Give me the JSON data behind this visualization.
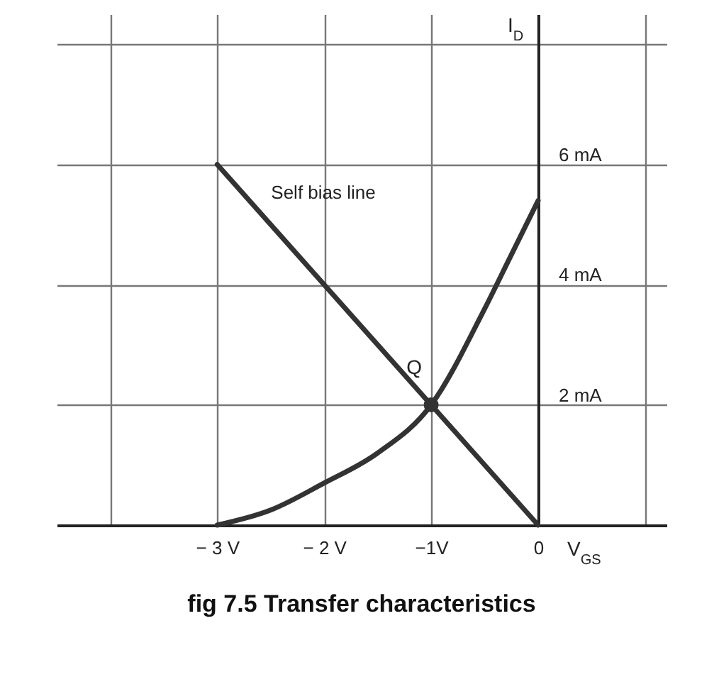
{
  "chart_data": {
    "type": "line",
    "title": "fig 7.5 Transfer characteristics",
    "xlabel": "V$_{GS}$",
    "ylabel": "I$_{D}$",
    "xlim": [
      -4.5,
      1.2
    ],
    "ylim": [
      0,
      8.5
    ],
    "xticks": [
      {
        "value": -4,
        "label": null
      },
      {
        "value": -3,
        "label": "− 3 V"
      },
      {
        "value": -2,
        "label": "− 2 V"
      },
      {
        "value": -1,
        "label": "−1V"
      },
      {
        "value": 0,
        "label": "0"
      },
      {
        "value": 1,
        "label": null
      }
    ],
    "yticks": [
      {
        "value": 0,
        "label": null
      },
      {
        "value": 2,
        "label": "2 mA"
      },
      {
        "value": 4,
        "label": "4 mA"
      },
      {
        "value": 6,
        "label": "6 mA"
      },
      {
        "value": 8,
        "label": null
      }
    ],
    "series": [
      {
        "color": "#333333",
        "x": [
          -3,
          -2.5,
          -2,
          -1.5,
          -1,
          -0.5,
          -0.25,
          0
        ],
        "values": [
          0,
          0.25,
          0.7,
          1.2,
          2,
          3.6,
          4.5,
          5.4
        ]
      },
      {
        "name": "Self bias line",
        "color": "#333333",
        "x": [
          -3,
          0
        ],
        "values": [
          6,
          0
        ]
      },
      {
        "type": "scatter",
        "color": "#333333",
        "x": [
          -1
        ],
        "values": [
          2
        ]
      }
    ],
    "annotations": [
      {
        "text": "Q",
        "x": -1,
        "y": 2
      }
    ],
    "grid": true,
    "line_style": "solid"
  }
}
